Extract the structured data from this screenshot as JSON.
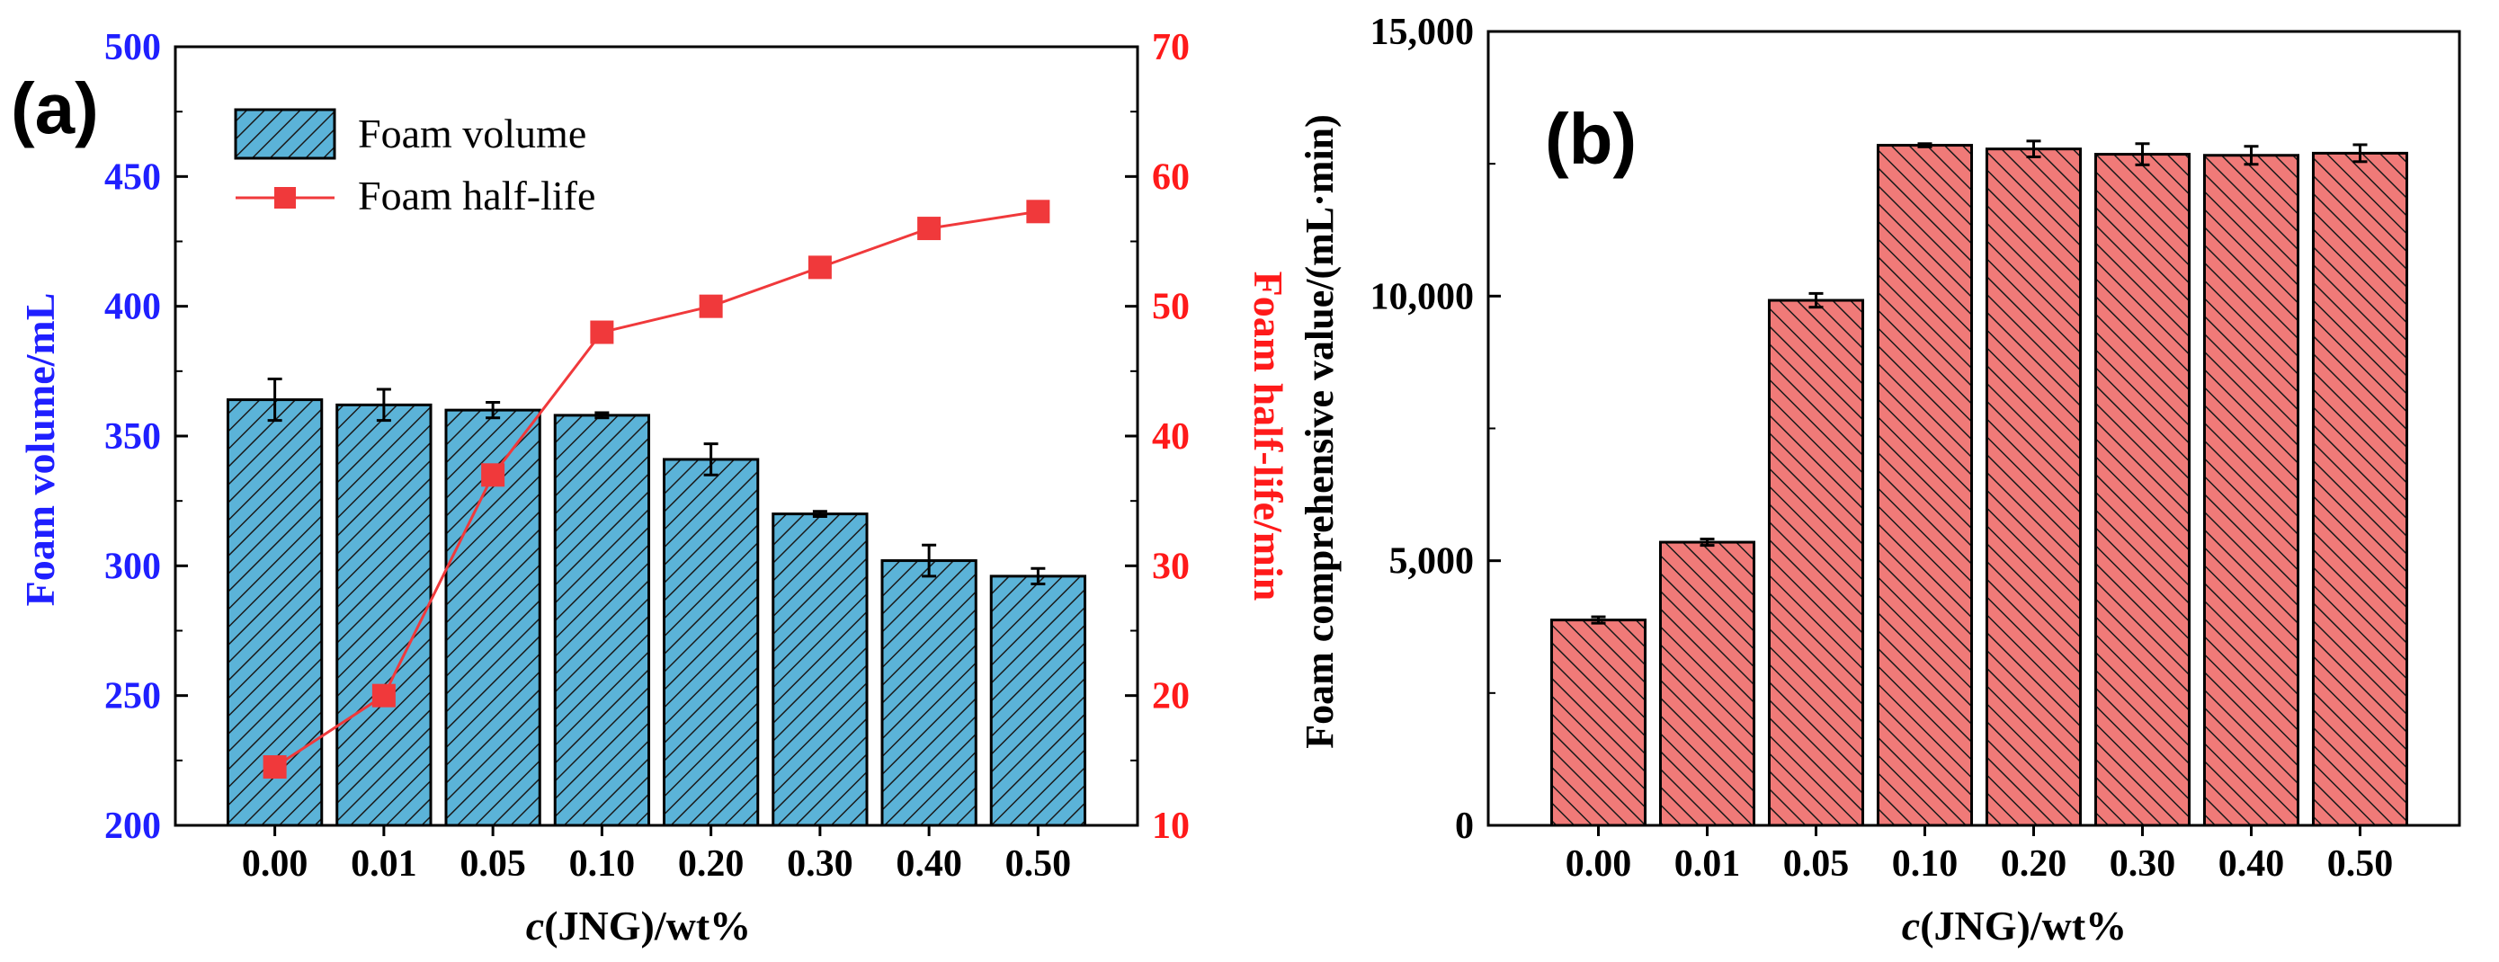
{
  "chart_data": [
    {
      "panel_label": "(a)",
      "type": "bar",
      "categories": [
        "0.00",
        "0.01",
        "0.05",
        "0.10",
        "0.20",
        "0.30",
        "0.40",
        "0.50"
      ],
      "xlabel_italic": "c",
      "xlabel_rest": "(JNG)/wt%",
      "ylabel": "Foam volume/mL",
      "ylim": [
        200,
        500
      ],
      "yticks": [
        200,
        250,
        300,
        350,
        400,
        450,
        500
      ],
      "y2label": "Foam half-life/min",
      "y2lim": [
        10,
        70
      ],
      "y2ticks": [
        10,
        20,
        30,
        40,
        50,
        60,
        70
      ],
      "series": [
        {
          "name": "Foam volume",
          "kind": "bar",
          "axis": "left",
          "values": [
            364,
            362,
            360,
            358,
            341,
            320,
            302,
            296
          ],
          "errors": [
            8,
            6,
            3,
            1,
            6,
            1,
            6,
            3
          ]
        },
        {
          "name": "Foam half-life",
          "kind": "line",
          "axis": "right",
          "values": [
            14.5,
            20,
            37,
            48,
            50,
            53,
            56,
            57.3
          ]
        }
      ],
      "colors": {
        "bar": "#5bb3d8",
        "line": "#f0393b",
        "left_axis": "#1f1fff",
        "right_axis": "#ff1a1a"
      }
    },
    {
      "panel_label": "(b)",
      "type": "bar",
      "categories": [
        "0.00",
        "0.01",
        "0.05",
        "0.10",
        "0.20",
        "0.30",
        "0.40",
        "0.50"
      ],
      "xlabel_italic": "c",
      "xlabel_rest": "(JNG)/wt%",
      "ylabel": "Foam comprehensive value/(mL·min)",
      "ylim": [
        0,
        15000
      ],
      "yticks": [
        0,
        5000,
        10000,
        15000
      ],
      "ytick_labels": [
        "0",
        "5,000",
        "10,000",
        "15,000"
      ],
      "series": [
        {
          "name": "Foam comprehensive value",
          "kind": "bar",
          "values": [
            3880,
            5350,
            9920,
            12850,
            12780,
            12680,
            12660,
            12700
          ],
          "errors": [
            60,
            60,
            130,
            30,
            150,
            200,
            170,
            160
          ]
        }
      ],
      "colors": {
        "bar": "#f07a78"
      }
    }
  ]
}
